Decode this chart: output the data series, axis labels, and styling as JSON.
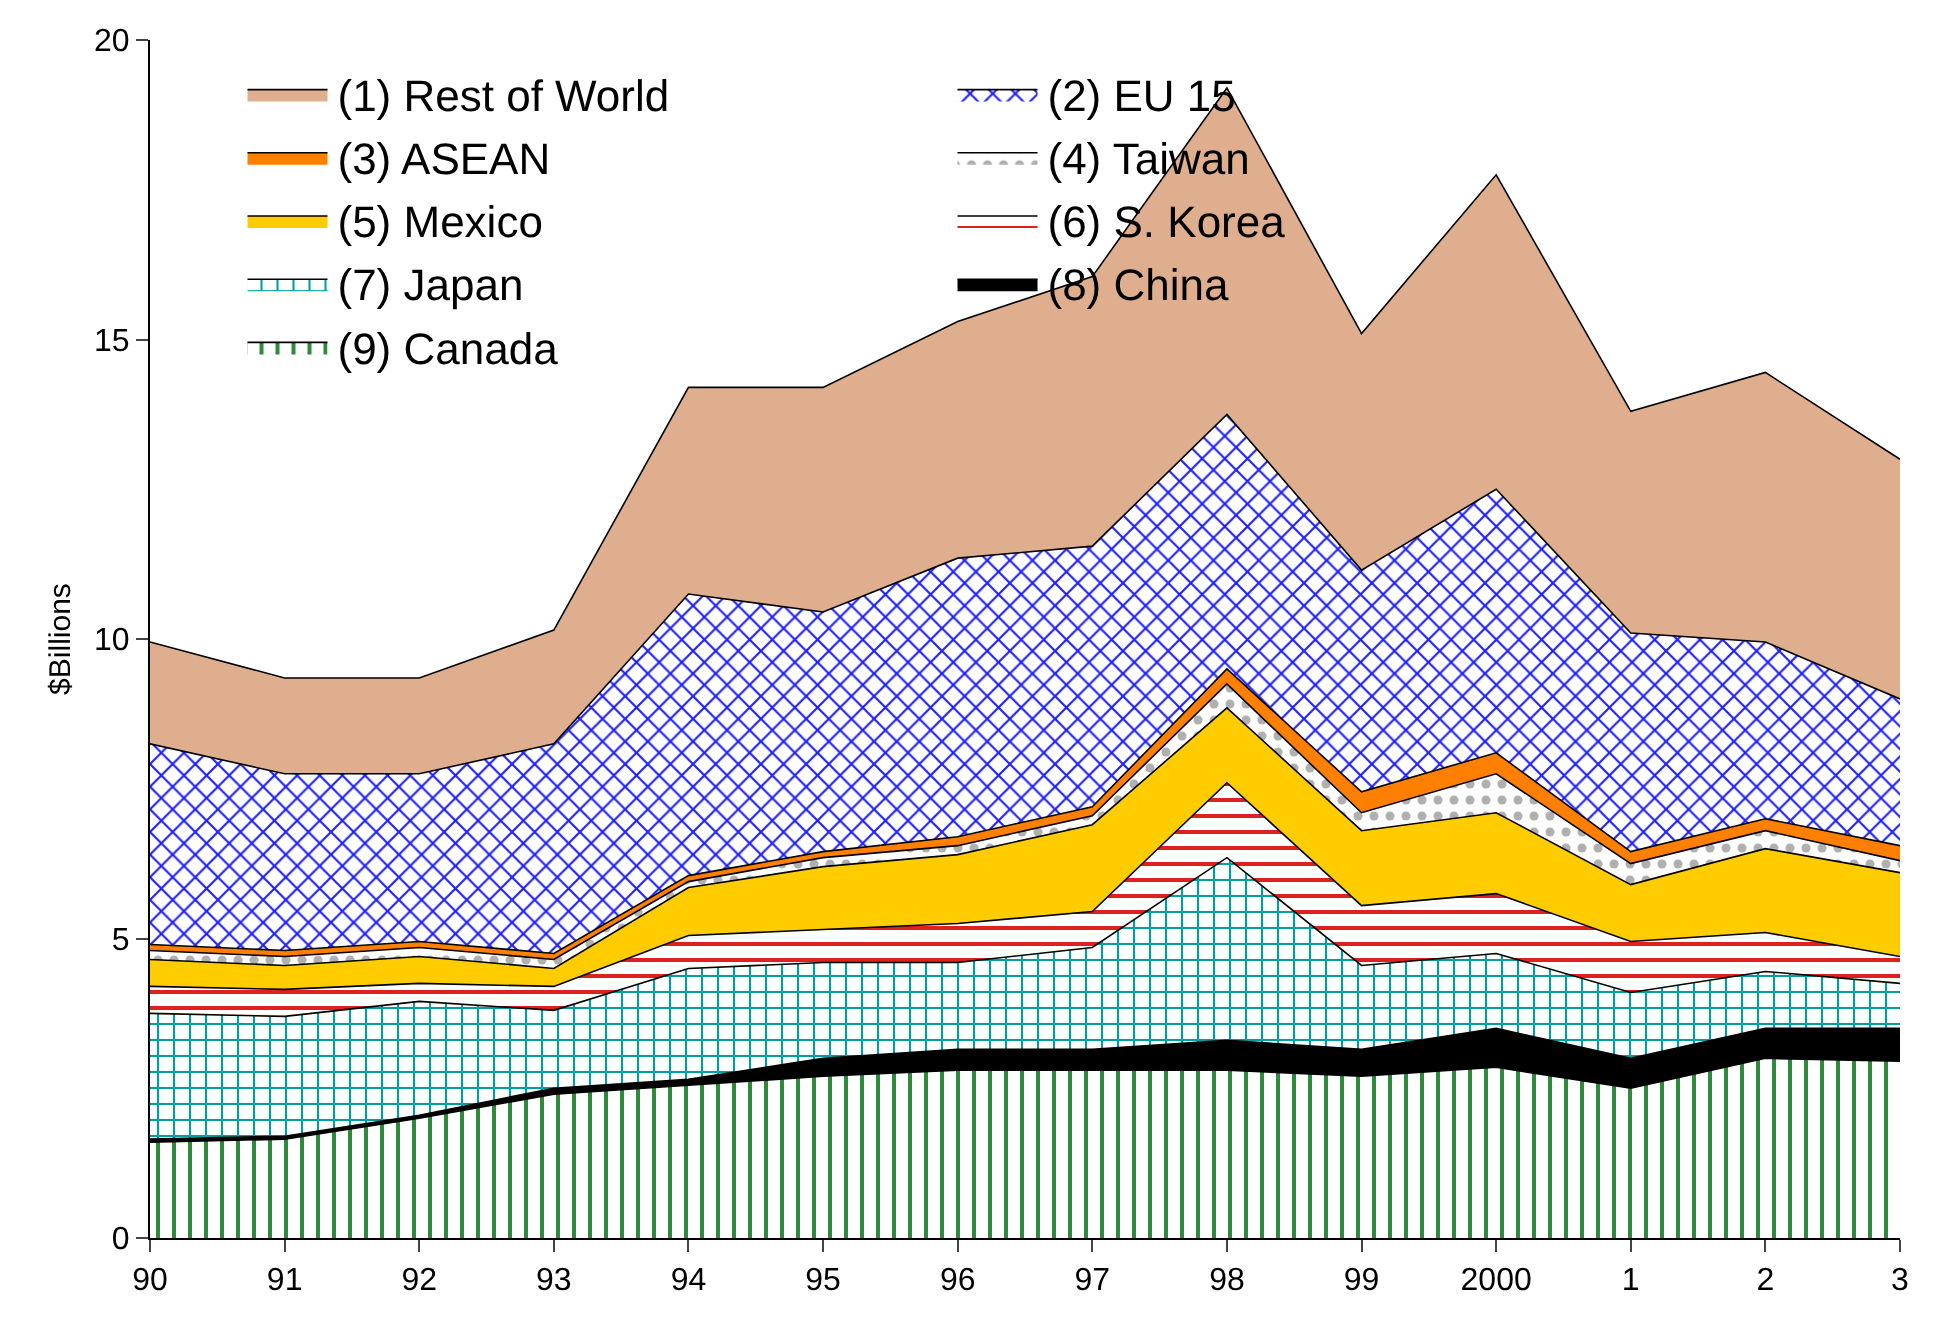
{
  "chart_data": {
    "type": "area",
    "stacked": true,
    "ylabel": "$Billions",
    "categories": [
      "90",
      "91",
      "92",
      "93",
      "94",
      "95",
      "96",
      "97",
      "98",
      "99",
      "2000",
      "1",
      "2",
      "3"
    ],
    "ylim": [
      0,
      20
    ],
    "yticks": [
      0,
      5,
      10,
      15,
      20
    ],
    "grid": false,
    "legend": "top left",
    "series": [
      {
        "name": "(9) Canada",
        "color": "#2e8b3a",
        "values": [
          1.6,
          1.65,
          2.0,
          2.4,
          2.55,
          2.7,
          2.8,
          2.8,
          2.8,
          2.7,
          2.85,
          2.5,
          3.0,
          2.95
        ]
      },
      {
        "name": "(8) China",
        "color": "#000000",
        "values": [
          0.05,
          0.05,
          0.05,
          0.1,
          0.1,
          0.3,
          0.35,
          0.35,
          0.5,
          0.45,
          0.65,
          0.5,
          0.5,
          0.55
        ]
      },
      {
        "name": "(7) Japan",
        "color": "#00a0a0",
        "values": [
          2.1,
          2.0,
          1.9,
          1.3,
          1.85,
          1.6,
          1.45,
          1.7,
          3.05,
          1.4,
          1.25,
          1.1,
          0.95,
          0.75
        ]
      },
      {
        "name": "(6) S. Korea",
        "color": "#e02020",
        "values": [
          0.45,
          0.45,
          0.3,
          0.4,
          0.55,
          0.55,
          0.65,
          0.6,
          1.25,
          1.0,
          1.0,
          0.85,
          0.65,
          0.45
        ]
      },
      {
        "name": "(5) Mexico",
        "color": "#ffcc00",
        "values": [
          0.45,
          0.4,
          0.45,
          0.3,
          0.8,
          1.05,
          1.15,
          1.45,
          1.25,
          1.25,
          1.35,
          0.95,
          1.4,
          1.4
        ]
      },
      {
        "name": "(4) Taiwan",
        "color": "#b0b0b0",
        "values": [
          0.15,
          0.15,
          0.15,
          0.15,
          0.1,
          0.15,
          0.15,
          0.15,
          0.4,
          0.3,
          0.65,
          0.35,
          0.3,
          0.2
        ]
      },
      {
        "name": "(3) ASEAN",
        "color": "#ff8000",
        "values": [
          0.1,
          0.1,
          0.1,
          0.1,
          0.1,
          0.1,
          0.15,
          0.15,
          0.25,
          0.35,
          0.35,
          0.2,
          0.2,
          0.25
        ]
      },
      {
        "name": "(2) EU 15",
        "color": "#2020ff",
        "values": [
          3.35,
          2.95,
          2.8,
          3.5,
          4.7,
          4.0,
          4.65,
          4.35,
          4.25,
          3.7,
          4.4,
          3.65,
          2.95,
          2.45
        ]
      },
      {
        "name": "(1) Rest of World",
        "color": "#dfae8e",
        "values": [
          1.7,
          1.6,
          1.6,
          1.9,
          3.45,
          3.75,
          3.95,
          4.5,
          5.45,
          3.95,
          5.25,
          3.7,
          4.5,
          4.0
        ]
      }
    ]
  }
}
